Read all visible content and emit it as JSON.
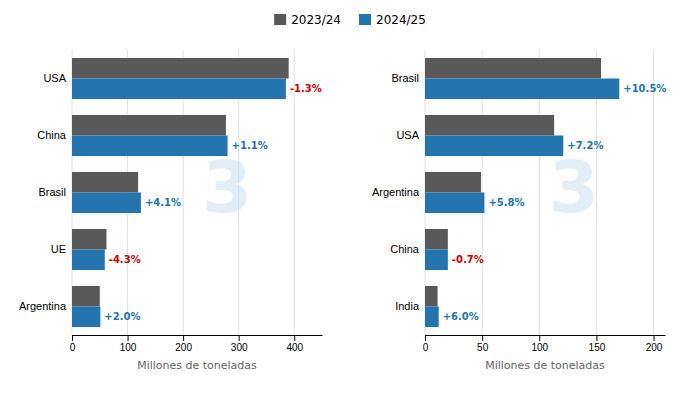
{
  "chart_data": [
    {
      "type": "bar",
      "orientation": "horizontal",
      "categories": [
        "USA",
        "China",
        "Brasil",
        "UE",
        "Argentina"
      ],
      "series": [
        {
          "name": "2023/24",
          "color": "#595959",
          "values": [
            390,
            277,
            119,
            62,
            50
          ]
        },
        {
          "name": "2024/25",
          "color": "#2474b0",
          "values": [
            385,
            280,
            124,
            59,
            51
          ]
        }
      ],
      "xlabel": "Millones de toneladas",
      "xlim": [
        0,
        450
      ],
      "xticks": [
        0,
        100,
        200,
        300,
        400
      ],
      "grid": true,
      "legend": "top",
      "annotations": [
        {
          "text": "-1.3%",
          "color": "#cc0000",
          "series": "2024/25",
          "category": "USA"
        },
        {
          "text": "+1.1%",
          "color": "#2474b0",
          "series": "2024/25",
          "category": "China"
        },
        {
          "text": "+4.1%",
          "color": "#2474b0",
          "series": "2024/25",
          "category": "Brasil"
        },
        {
          "text": "-4.3%",
          "color": "#cc0000",
          "series": "2024/25",
          "category": "UE"
        },
        {
          "text": "+2.0%",
          "color": "#2474b0",
          "series": "2024/25",
          "category": "Argentina"
        },
        {
          "text": "3",
          "color": "#c8dff0"
        }
      ]
    },
    {
      "type": "bar",
      "orientation": "horizontal",
      "categories": [
        "Brasil",
        "USA",
        "Argentina",
        "China",
        "India"
      ],
      "series": [
        {
          "name": "2023/24",
          "color": "#595959",
          "values": [
            154,
            113,
            49,
            20,
            11
          ]
        },
        {
          "name": "2024/25",
          "color": "#2474b0",
          "values": [
            170,
            121,
            52,
            20,
            12
          ]
        }
      ],
      "xlabel": "Millones de toneladas",
      "xlim": [
        0,
        210
      ],
      "xticks": [
        0,
        50,
        100,
        150,
        200
      ],
      "grid": true,
      "annotations": [
        {
          "text": "+10.5%",
          "color": "#2474b0",
          "series": "2024/25",
          "category": "Brasil"
        },
        {
          "text": "+7.2%",
          "color": "#2474b0",
          "series": "2024/25",
          "category": "USA"
        },
        {
          "text": "+5.8%",
          "color": "#2474b0",
          "series": "2024/25",
          "category": "Argentina"
        },
        {
          "text": "-0.7%",
          "color": "#cc0000",
          "series": "2024/25",
          "category": "China"
        },
        {
          "text": "+6.0%",
          "color": "#2474b0",
          "series": "2024/25",
          "category": "India"
        },
        {
          "text": "3",
          "color": "#c8dff0"
        }
      ]
    }
  ]
}
